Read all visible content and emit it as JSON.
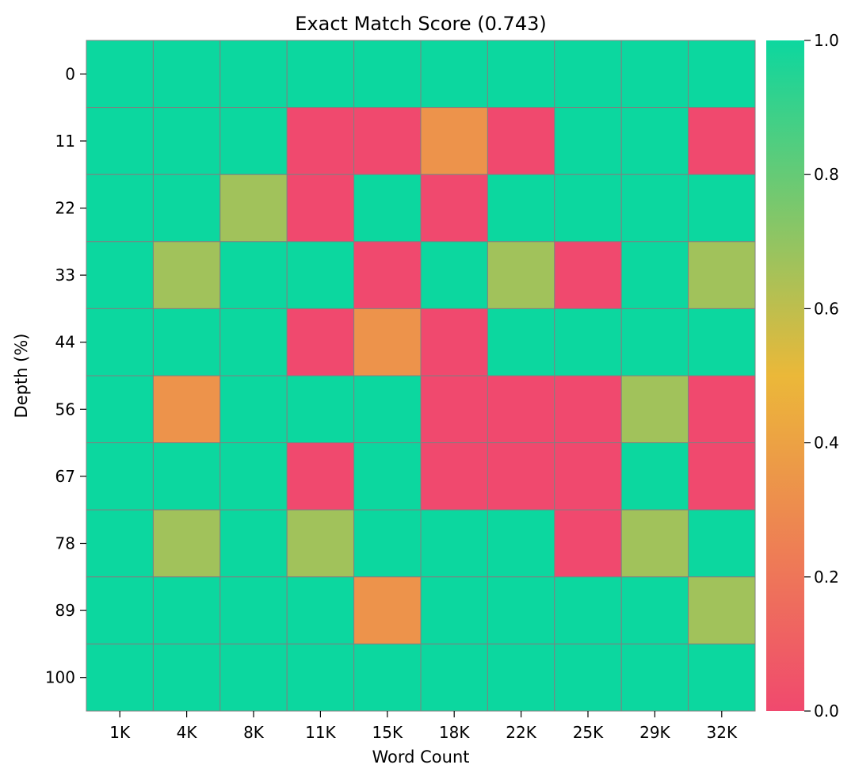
{
  "chart_data": {
    "type": "heatmap",
    "title": "Exact Match Score (0.743)",
    "xlabel": "Word Count",
    "ylabel": "Depth (%)",
    "x": [
      "1K",
      "4K",
      "8K",
      "11K",
      "15K",
      "18K",
      "22K",
      "25K",
      "29K",
      "32K"
    ],
    "y": [
      "0",
      "11",
      "22",
      "33",
      "44",
      "56",
      "67",
      "78",
      "89",
      "100"
    ],
    "values": [
      [
        1,
        1,
        1,
        1,
        1,
        1,
        1,
        1,
        1,
        1
      ],
      [
        1,
        1,
        1,
        0,
        0,
        0.333,
        0,
        1,
        1,
        0
      ],
      [
        1,
        1,
        0.667,
        0,
        1,
        0,
        1,
        1,
        1,
        1
      ],
      [
        1,
        0.667,
        1,
        1,
        0,
        1,
        0.667,
        0,
        1,
        0.667
      ],
      [
        1,
        1,
        1,
        0,
        0.333,
        0,
        1,
        1,
        1,
        1
      ],
      [
        1,
        0.333,
        1,
        1,
        1,
        0,
        0,
        0,
        0.667,
        0
      ],
      [
        1,
        1,
        1,
        0,
        1,
        0,
        0,
        0,
        1,
        0
      ],
      [
        1,
        0.667,
        1,
        0.667,
        1,
        1,
        1,
        0,
        0.667,
        1
      ],
      [
        1,
        1,
        1,
        1,
        0.333,
        1,
        1,
        1,
        1,
        0.667
      ],
      [
        1,
        1,
        1,
        1,
        1,
        1,
        1,
        1,
        1,
        1
      ]
    ],
    "vmin": 0,
    "vmax": 1,
    "colorbar": {
      "ticks": [
        "0.0",
        "0.2",
        "0.4",
        "0.6",
        "0.8",
        "1.0"
      ],
      "tick_values": [
        0,
        0.2,
        0.4,
        0.6,
        0.8,
        1.0
      ]
    },
    "colormap": [
      "#f0496e",
      "#ebb839",
      "#0cd79f"
    ],
    "cell_edge_color": "#808080",
    "grid": false,
    "legend": "colorbar-right"
  }
}
